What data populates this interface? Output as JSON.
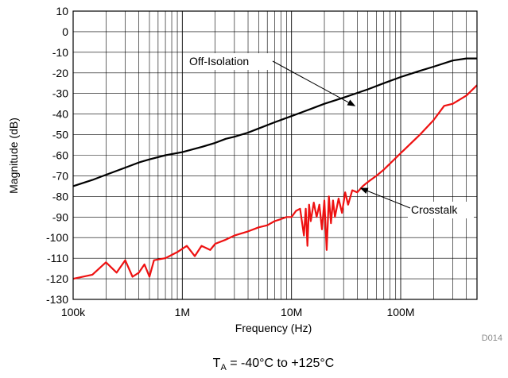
{
  "chart_data": {
    "type": "line",
    "xlabel": "Frequency (Hz)",
    "ylabel": "Magnitude (dB)",
    "x_scale": "log",
    "xlim": [
      100000,
      500000000
    ],
    "ylim": [
      -130,
      10
    ],
    "x_ticks": [
      {
        "value": 100000,
        "label": "100k"
      },
      {
        "value": 1000000,
        "label": "1M"
      },
      {
        "value": 10000000,
        "label": "10M"
      },
      {
        "value": 100000000,
        "label": "100M"
      }
    ],
    "y_ticks": [
      10,
      0,
      -10,
      -20,
      -30,
      -40,
      -50,
      -60,
      -70,
      -80,
      -90,
      -100,
      -110,
      -120,
      -130
    ],
    "grid": true,
    "series": [
      {
        "name": "Off-Isolation",
        "color": "#000000",
        "points": [
          [
            100000,
            -75
          ],
          [
            150000,
            -72
          ],
          [
            200000,
            -69.5
          ],
          [
            300000,
            -66
          ],
          [
            400000,
            -63.5
          ],
          [
            500000,
            -62
          ],
          [
            700000,
            -60
          ],
          [
            1000000,
            -58.5
          ],
          [
            1500000,
            -56
          ],
          [
            2000000,
            -54
          ],
          [
            2500000,
            -52
          ],
          [
            3000000,
            -51
          ],
          [
            4000000,
            -49
          ],
          [
            5000000,
            -47
          ],
          [
            7000000,
            -44
          ],
          [
            10000000,
            -41
          ],
          [
            15000000,
            -37.5
          ],
          [
            20000000,
            -35
          ],
          [
            30000000,
            -32
          ],
          [
            50000000,
            -28
          ],
          [
            70000000,
            -25
          ],
          [
            100000000,
            -22
          ],
          [
            150000000,
            -19
          ],
          [
            200000000,
            -17
          ],
          [
            300000000,
            -14
          ],
          [
            400000000,
            -13
          ],
          [
            500000000,
            -13
          ]
        ]
      },
      {
        "name": "Crosstalk",
        "color": "#ee1111",
        "points": [
          [
            100000,
            -120
          ],
          [
            150000,
            -118
          ],
          [
            200000,
            -112
          ],
          [
            250000,
            -117
          ],
          [
            300000,
            -111
          ],
          [
            350000,
            -119
          ],
          [
            400000,
            -117
          ],
          [
            450000,
            -113
          ],
          [
            500000,
            -119
          ],
          [
            550000,
            -111
          ],
          [
            700000,
            -110
          ],
          [
            900000,
            -107
          ],
          [
            1100000,
            -104
          ],
          [
            1300000,
            -109
          ],
          [
            1500000,
            -104
          ],
          [
            1800000,
            -106
          ],
          [
            2000000,
            -103
          ],
          [
            2500000,
            -101
          ],
          [
            3000000,
            -99
          ],
          [
            4000000,
            -97
          ],
          [
            5000000,
            -95
          ],
          [
            6000000,
            -94
          ],
          [
            7000000,
            -92
          ],
          [
            8000000,
            -91
          ],
          [
            9000000,
            -90
          ],
          [
            10000000,
            -90
          ],
          [
            11000000,
            -87
          ],
          [
            12000000,
            -86
          ],
          [
            13000000,
            -99
          ],
          [
            13500000,
            -86
          ],
          [
            14000000,
            -104
          ],
          [
            14500000,
            -84
          ],
          [
            15000000,
            -92
          ],
          [
            16000000,
            -83
          ],
          [
            17000000,
            -90
          ],
          [
            18000000,
            -84
          ],
          [
            19000000,
            -96
          ],
          [
            20000000,
            -82
          ],
          [
            21000000,
            -106
          ],
          [
            22000000,
            -80
          ],
          [
            23000000,
            -93
          ],
          [
            24000000,
            -82
          ],
          [
            25000000,
            -90
          ],
          [
            27000000,
            -81
          ],
          [
            29000000,
            -88
          ],
          [
            31000000,
            -78
          ],
          [
            33000000,
            -84
          ],
          [
            36000000,
            -77
          ],
          [
            40000000,
            -78
          ],
          [
            45000000,
            -75
          ],
          [
            50000000,
            -73
          ],
          [
            60000000,
            -70
          ],
          [
            70000000,
            -67
          ],
          [
            100000000,
            -59
          ],
          [
            150000000,
            -50
          ],
          [
            200000000,
            -43
          ],
          [
            250000000,
            -36
          ],
          [
            300000000,
            -35
          ],
          [
            400000000,
            -31
          ],
          [
            500000000,
            -26
          ]
        ]
      }
    ],
    "annotations": [
      {
        "text": "Off-Isolation",
        "series": "Off-Isolation"
      },
      {
        "text": "Crosstalk",
        "series": "Crosstalk"
      }
    ],
    "figure_id": "D014",
    "caption": {
      "main": "T",
      "sub": "A",
      "rest": " = -40°C to +125°C"
    }
  }
}
